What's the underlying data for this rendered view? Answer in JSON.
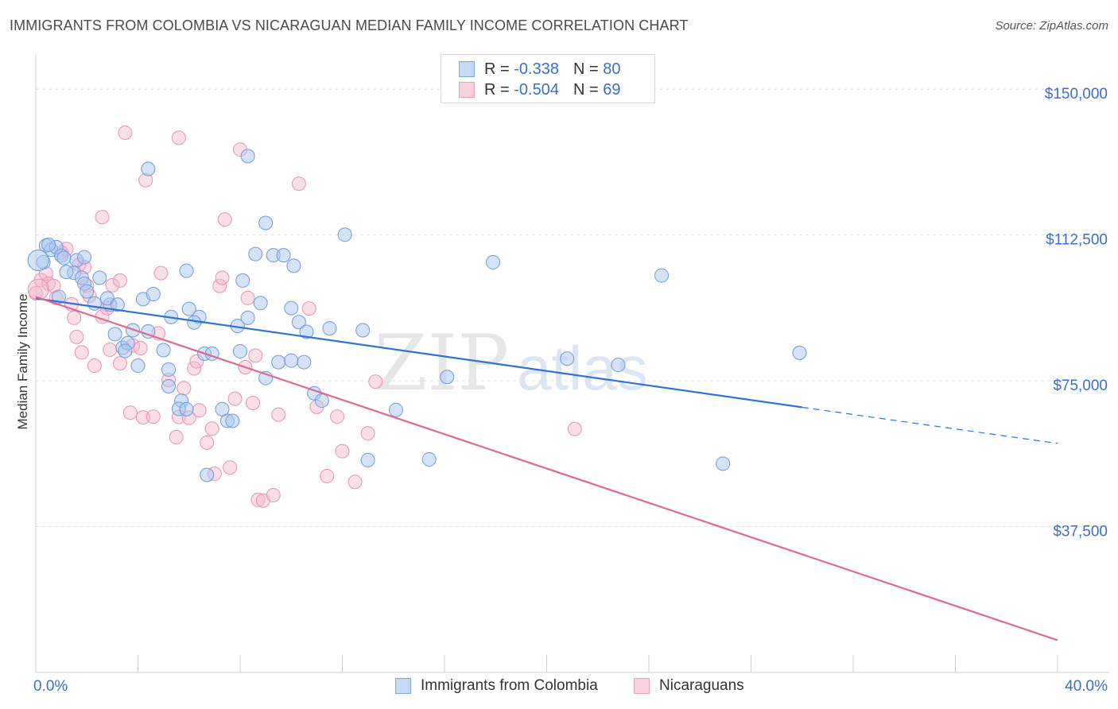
{
  "title": "IMMIGRANTS FROM COLOMBIA VS NICARAGUAN MEDIAN FAMILY INCOME CORRELATION CHART",
  "source": "Source: ZipAtlas.com",
  "watermark": {
    "part1": "ZIP",
    "part2": "atlas"
  },
  "legend": {
    "series1": {
      "r_label": "R = ",
      "r_value": "-0.338",
      "n_label": "N = ",
      "n_value": "80"
    },
    "series2": {
      "r_label": "R = ",
      "r_value": "-0.504",
      "n_label": "N = ",
      "n_value": "69"
    }
  },
  "chart_data": {
    "type": "scatter",
    "title": "IMMIGRANTS FROM COLOMBIA VS NICARAGUAN MEDIAN FAMILY INCOME CORRELATION CHART",
    "xlabel": "",
    "ylabel": "Median Family Income",
    "xlim": [
      0,
      40
    ],
    "ylim": [
      0,
      157000
    ],
    "x_tick_labels": [
      "0.0%",
      "40.0%"
    ],
    "y_ticks": [
      37500,
      75000,
      112500,
      150000
    ],
    "y_tick_labels": [
      "$37,500",
      "$75,000",
      "$112,500",
      "$150,000"
    ],
    "grid": true,
    "legend_position": "top-center",
    "colors": {
      "series1": "#a9c8ef",
      "series1_line": "#2f72d6",
      "series2": "#f4b6cb",
      "series2_line": "#e0688f",
      "axis_text": "#3a6fc9"
    },
    "series": [
      {
        "name": "Immigrants from Colombia",
        "points": [
          [
            0.3,
            105500
          ],
          [
            0.4,
            109800
          ],
          [
            0.6,
            108700
          ],
          [
            0.8,
            109400
          ],
          [
            1.0,
            107200
          ],
          [
            1.1,
            106600
          ],
          [
            1.6,
            106000
          ],
          [
            1.9,
            106800
          ],
          [
            1.5,
            102800
          ],
          [
            1.8,
            101500
          ],
          [
            2.5,
            101500
          ],
          [
            1.9,
            100000
          ],
          [
            0.9,
            96600
          ],
          [
            2.3,
            94900
          ],
          [
            2.9,
            94600
          ],
          [
            2.8,
            96200
          ],
          [
            3.2,
            94600
          ],
          [
            4.2,
            96000
          ],
          [
            4.6,
            97300
          ],
          [
            5.0,
            82900
          ],
          [
            4.4,
            87700
          ],
          [
            3.1,
            87000
          ],
          [
            3.4,
            83500
          ],
          [
            3.6,
            84700
          ],
          [
            3.5,
            82700
          ],
          [
            4.0,
            78900
          ],
          [
            5.2,
            77900
          ],
          [
            5.2,
            73600
          ],
          [
            5.7,
            69900
          ],
          [
            5.6,
            67800
          ],
          [
            5.9,
            67700
          ],
          [
            5.3,
            91400
          ],
          [
            5.9,
            103300
          ],
          [
            6.0,
            93500
          ],
          [
            6.4,
            91400
          ],
          [
            6.6,
            82000
          ],
          [
            6.9,
            82000
          ],
          [
            6.7,
            50800
          ],
          [
            7.3,
            67700
          ],
          [
            7.5,
            64700
          ],
          [
            7.7,
            64700
          ],
          [
            8.0,
            82600
          ],
          [
            7.9,
            89100
          ],
          [
            8.3,
            91200
          ],
          [
            8.1,
            100800
          ],
          [
            8.6,
            107600
          ],
          [
            9.3,
            107300
          ],
          [
            9.7,
            107300
          ],
          [
            10.1,
            104600
          ],
          [
            9.0,
            115600
          ],
          [
            8.3,
            132800
          ],
          [
            4.4,
            129500
          ],
          [
            10.0,
            93700
          ],
          [
            10.3,
            90100
          ],
          [
            10.6,
            87600
          ],
          [
            9.5,
            79800
          ],
          [
            10.0,
            80200
          ],
          [
            10.5,
            79800
          ],
          [
            9.0,
            75700
          ],
          [
            10.9,
            71800
          ],
          [
            11.2,
            69900
          ],
          [
            12.1,
            112600
          ],
          [
            12.8,
            88000
          ],
          [
            13.0,
            54600
          ],
          [
            14.1,
            67500
          ],
          [
            15.4,
            54800
          ],
          [
            16.1,
            76000
          ],
          [
            17.9,
            105500
          ],
          [
            20.8,
            80700
          ],
          [
            22.8,
            79100
          ],
          [
            24.5,
            102100
          ],
          [
            26.9,
            53700
          ],
          [
            29.9,
            82200
          ],
          [
            0.5,
            110000
          ],
          [
            1.2,
            103000
          ],
          [
            2.0,
            98000
          ],
          [
            3.8,
            88000
          ],
          [
            6.2,
            90000
          ],
          [
            8.8,
            95000
          ],
          [
            11.5,
            88500
          ]
        ]
      },
      {
        "name": "Nicaraguans",
        "points": [
          [
            0.0,
            97500
          ],
          [
            0.2,
            100900
          ],
          [
            0.4,
            102600
          ],
          [
            0.5,
            100000
          ],
          [
            0.7,
            99400
          ],
          [
            0.8,
            96300
          ],
          [
            1.2,
            108900
          ],
          [
            1.0,
            108000
          ],
          [
            1.4,
            94700
          ],
          [
            1.5,
            91200
          ],
          [
            1.7,
            104900
          ],
          [
            1.6,
            86300
          ],
          [
            1.8,
            82300
          ],
          [
            1.9,
            104200
          ],
          [
            2.0,
            99500
          ],
          [
            2.1,
            96900
          ],
          [
            2.3,
            78900
          ],
          [
            2.6,
            117100
          ],
          [
            2.6,
            91500
          ],
          [
            2.8,
            93700
          ],
          [
            2.9,
            83000
          ],
          [
            3.0,
            99600
          ],
          [
            3.3,
            100800
          ],
          [
            3.3,
            79500
          ],
          [
            3.5,
            138800
          ],
          [
            3.7,
            66800
          ],
          [
            3.8,
            84100
          ],
          [
            4.1,
            83400
          ],
          [
            4.2,
            65600
          ],
          [
            4.3,
            126600
          ],
          [
            4.6,
            65800
          ],
          [
            4.8,
            87200
          ],
          [
            4.9,
            102700
          ],
          [
            5.2,
            75200
          ],
          [
            5.5,
            60500
          ],
          [
            5.6,
            65700
          ],
          [
            5.8,
            73100
          ],
          [
            6.0,
            65500
          ],
          [
            6.2,
            78200
          ],
          [
            6.3,
            80000
          ],
          [
            5.6,
            137500
          ],
          [
            6.4,
            67400
          ],
          [
            6.7,
            59100
          ],
          [
            6.9,
            62700
          ],
          [
            7.0,
            51100
          ],
          [
            7.2,
            99400
          ],
          [
            7.3,
            101500
          ],
          [
            7.4,
            116500
          ],
          [
            7.6,
            52700
          ],
          [
            7.8,
            70400
          ],
          [
            8.0,
            134500
          ],
          [
            8.2,
            78500
          ],
          [
            8.3,
            96300
          ],
          [
            8.5,
            69300
          ],
          [
            8.6,
            81500
          ],
          [
            8.7,
            44400
          ],
          [
            8.9,
            44200
          ],
          [
            9.3,
            45600
          ],
          [
            9.5,
            66300
          ],
          [
            10.3,
            125700
          ],
          [
            10.7,
            93600
          ],
          [
            11.0,
            68300
          ],
          [
            11.4,
            50500
          ],
          [
            11.8,
            65800
          ],
          [
            12.0,
            56900
          ],
          [
            12.5,
            49000
          ],
          [
            13.0,
            61500
          ],
          [
            13.3,
            74800
          ],
          [
            21.1,
            62600
          ]
        ]
      }
    ],
    "trend_lines": [
      {
        "series": "Immigrants from Colombia",
        "x": [
          0,
          30
        ],
        "y": [
          96200,
          68200
        ],
        "dashed_extension": {
          "x": [
            30,
            40
          ],
          "y": [
            68200,
            58900
          ]
        }
      },
      {
        "series": "Nicaraguans",
        "x": [
          0,
          40
        ],
        "y": [
          96600,
          8300
        ]
      }
    ],
    "extra_point_note": ""
  }
}
